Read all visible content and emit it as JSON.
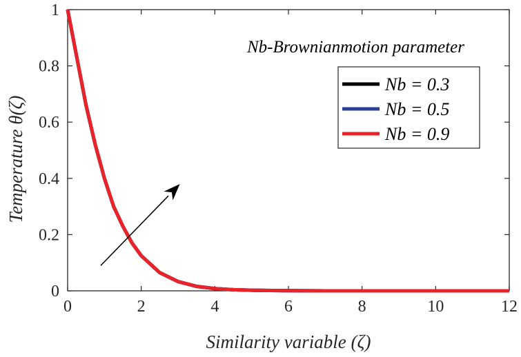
{
  "chart_data": {
    "type": "line",
    "title": "",
    "xlabel": "Similarity variable (ζ)",
    "ylabel": "Temperature  θ(ζ)",
    "xlim": [
      0,
      12
    ],
    "ylim": [
      0,
      1
    ],
    "xticks": [
      0,
      2,
      4,
      6,
      8,
      10,
      12
    ],
    "yticks": [
      0,
      0.2,
      0.4,
      0.6,
      0.8,
      1
    ],
    "ytick_labels": [
      "0",
      "0.2",
      "0.4",
      "0.6",
      "0.8",
      "1"
    ],
    "grid": false,
    "annotation": "Nb-Brownianmotion parameter",
    "legend_position": "top-right",
    "x": [
      0,
      0.25,
      0.5,
      0.75,
      1,
      1.25,
      1.5,
      1.75,
      2,
      2.5,
      3,
      3.5,
      4,
      4.5,
      5,
      6,
      7,
      8,
      9,
      10,
      11,
      12
    ],
    "series": [
      {
        "name": "Nb = 0.3",
        "color": "#000000",
        "values": [
          1,
          0.83,
          0.66,
          0.52,
          0.4,
          0.3,
          0.23,
          0.17,
          0.125,
          0.065,
          0.033,
          0.016,
          0.008,
          0.004,
          0.002,
          0.0005,
          0.0001,
          0,
          0,
          0,
          0,
          0
        ]
      },
      {
        "name": "Nb = 0.5",
        "color": "#2b3f96",
        "values": [
          1,
          0.83,
          0.66,
          0.52,
          0.4,
          0.3,
          0.23,
          0.17,
          0.125,
          0.065,
          0.033,
          0.016,
          0.008,
          0.004,
          0.002,
          0.0005,
          0.0001,
          0,
          0,
          0,
          0,
          0
        ]
      },
      {
        "name": "Nb = 0.9",
        "color": "#e8242a",
        "values": [
          1,
          0.83,
          0.66,
          0.52,
          0.4,
          0.3,
          0.23,
          0.17,
          0.125,
          0.065,
          0.033,
          0.016,
          0.008,
          0.004,
          0.002,
          0.0005,
          0.0001,
          0,
          0,
          0,
          0,
          0
        ]
      }
    ],
    "arrow": {
      "from": [
        0.9,
        0.09
      ],
      "to": [
        3.05,
        0.38
      ]
    }
  }
}
